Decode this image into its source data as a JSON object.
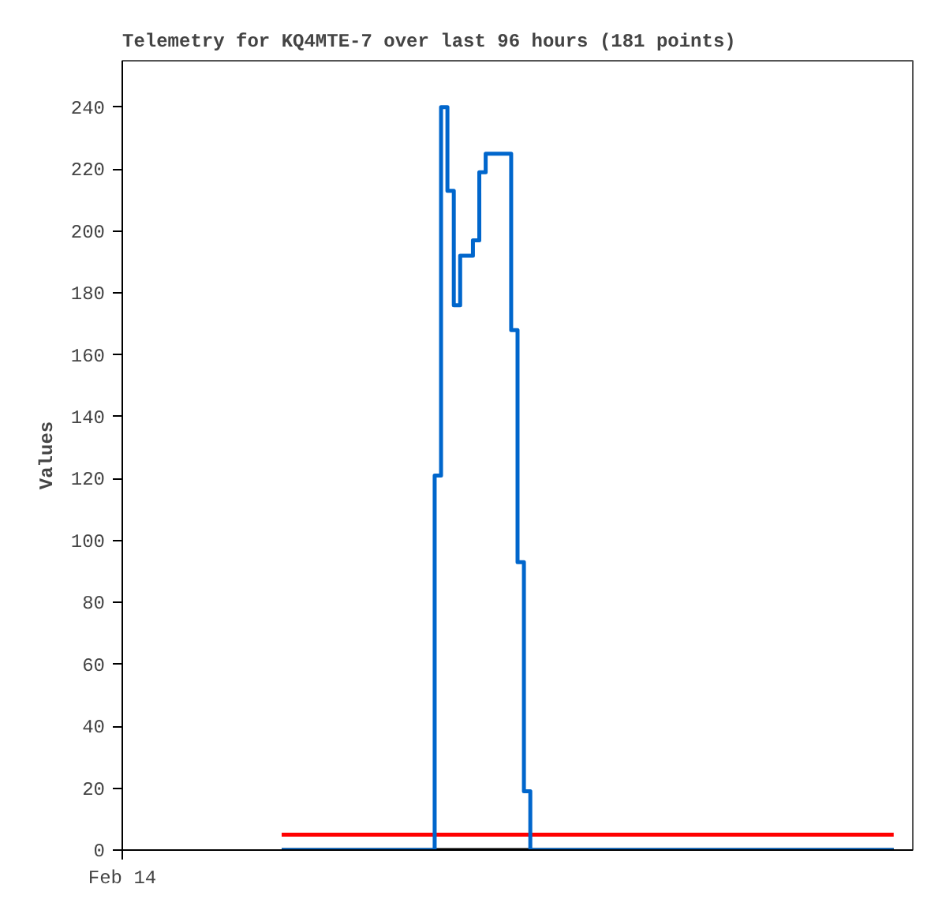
{
  "chart_data": {
    "type": "line",
    "title": "Telemetry for KQ4MTE-7 over last 96 hours (181 points)",
    "ylabel": "Values",
    "categories": [
      "Feb 14",
      null,
      null,
      null,
      null,
      null,
      null,
      null,
      null,
      null,
      null,
      null,
      null,
      null,
      null,
      null,
      null,
      null,
      null,
      null,
      null,
      null,
      null,
      null,
      null,
      null,
      null,
      null,
      null,
      null,
      null,
      null,
      null,
      null,
      null,
      null,
      null,
      null,
      null,
      null,
      null,
      null,
      null,
      null,
      null,
      null,
      null,
      null,
      null,
      null,
      null,
      null,
      null,
      null,
      null,
      null,
      null,
      null,
      null,
      null,
      null,
      null,
      null,
      null,
      null,
      null,
      null,
      null,
      null,
      null,
      null,
      null,
      null,
      null,
      null,
      null,
      null,
      null,
      null,
      null,
      null,
      null,
      null,
      null,
      null,
      null,
      null,
      null,
      null,
      null,
      null,
      null,
      null,
      null,
      null,
      null,
      null,
      null,
      null,
      null,
      null,
      null,
      null,
      null,
      null,
      null,
      null,
      null,
      null,
      null,
      null,
      null,
      null,
      null,
      null,
      null,
      null,
      null,
      null,
      null,
      null,
      null,
      null,
      null,
      null
    ],
    "ylim": [
      0,
      255
    ],
    "yticks": [
      0,
      20,
      40,
      60,
      80,
      100,
      120,
      140,
      160,
      180,
      200,
      220,
      240
    ],
    "grid": false,
    "marker": "none",
    "line_style": "solid",
    "series": [
      {
        "color": "#000000",
        "values": [
          null,
          null,
          null,
          null,
          null,
          null,
          null,
          null,
          null,
          null,
          null,
          null,
          null,
          null,
          null,
          null,
          null,
          null,
          null,
          null,
          null,
          null,
          null,
          null,
          null,
          0,
          0,
          0,
          0,
          0,
          0,
          0,
          0,
          0,
          0,
          0,
          0,
          0,
          0,
          0,
          0,
          0,
          0,
          0,
          0,
          0,
          0,
          0,
          0,
          0,
          0,
          0,
          0,
          0,
          0,
          0,
          0,
          0,
          0,
          0,
          0,
          0,
          0,
          0,
          0,
          0,
          0,
          0,
          0,
          0,
          0,
          0,
          0,
          0,
          0,
          0,
          0,
          0,
          0,
          0,
          0,
          0,
          0,
          0,
          0,
          0,
          0,
          0,
          0,
          0,
          0,
          0,
          0,
          0,
          0,
          0,
          0,
          0,
          0,
          0,
          0,
          0,
          0,
          0,
          0,
          0,
          0,
          0,
          0,
          0,
          0,
          0,
          0,
          0,
          0,
          0,
          0,
          0,
          0,
          0,
          0,
          0,
          null,
          null,
          null
        ]
      },
      {
        "color": "#ff0000",
        "values": [
          null,
          null,
          null,
          null,
          null,
          null,
          null,
          null,
          null,
          null,
          null,
          null,
          null,
          null,
          null,
          null,
          null,
          null,
          null,
          null,
          null,
          null,
          null,
          null,
          null,
          5,
          5,
          5,
          5,
          5,
          5,
          5,
          5,
          5,
          5,
          5,
          5,
          5,
          5,
          5,
          5,
          5,
          5,
          5,
          5,
          5,
          5,
          5,
          5,
          5,
          5,
          5,
          5,
          5,
          5,
          5,
          5,
          5,
          5,
          5,
          5,
          5,
          5,
          5,
          5,
          5,
          5,
          5,
          5,
          5,
          5,
          5,
          5,
          5,
          5,
          5,
          5,
          5,
          5,
          5,
          5,
          5,
          5,
          5,
          5,
          5,
          5,
          5,
          5,
          5,
          5,
          5,
          5,
          5,
          5,
          5,
          5,
          5,
          5,
          5,
          5,
          5,
          5,
          5,
          5,
          5,
          5,
          5,
          5,
          5,
          5,
          5,
          5,
          5,
          5,
          5,
          5,
          5,
          5,
          5,
          5,
          5,
          null,
          null,
          null
        ]
      },
      {
        "type": "step",
        "color": "#0066cc",
        "values": [
          null,
          null,
          null,
          null,
          null,
          null,
          null,
          null,
          null,
          null,
          null,
          null,
          null,
          null,
          null,
          null,
          null,
          null,
          null,
          null,
          null,
          null,
          null,
          null,
          null,
          0,
          0,
          0,
          0,
          0,
          0,
          0,
          0,
          0,
          0,
          0,
          0,
          0,
          0,
          0,
          0,
          0,
          0,
          0,
          0,
          0,
          0,
          0,
          0,
          121,
          240,
          213,
          176,
          192,
          192,
          197,
          219,
          225,
          225,
          225,
          225,
          168,
          93,
          19,
          0,
          0,
          0,
          0,
          0,
          0,
          0,
          0,
          0,
          0,
          0,
          0,
          0,
          0,
          0,
          0,
          0,
          0,
          0,
          0,
          0,
          0,
          0,
          0,
          0,
          0,
          0,
          0,
          0,
          0,
          0,
          0,
          0,
          0,
          0,
          0,
          0,
          0,
          0,
          0,
          0,
          0,
          0,
          0,
          0,
          0,
          0,
          0,
          0,
          0,
          0,
          0,
          0,
          0,
          0,
          0,
          0,
          0,
          null,
          null,
          null
        ]
      }
    ]
  }
}
